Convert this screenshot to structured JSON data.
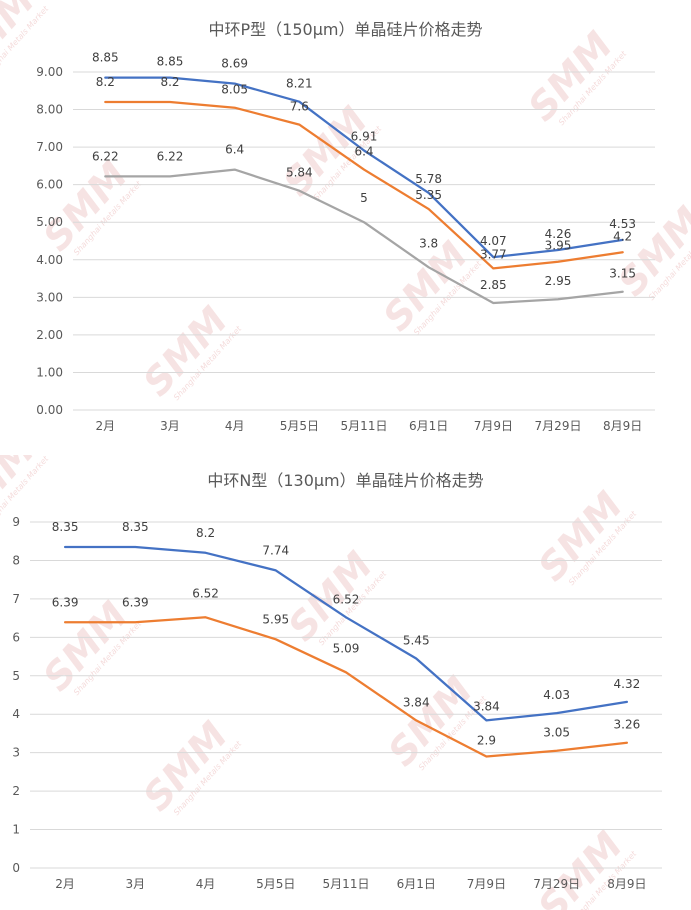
{
  "watermark": {
    "logo": "SMM",
    "tagline": "Shanghai Metals Market"
  },
  "colors": {
    "series1": "#4472c4",
    "series2": "#ed7d31",
    "series3": "#a5a5a5",
    "grid": "#d9d9d9"
  },
  "chart_data": [
    {
      "type": "line",
      "title": "中环P型（150μm）单晶硅片价格走势",
      "categories": [
        "2月",
        "3月",
        "4月",
        "5月5日",
        "5月11日",
        "6月1日",
        "7月9日",
        "7月29日",
        "8月9日"
      ],
      "ylim": [
        0,
        9
      ],
      "yticks": [
        0,
        1,
        2,
        3,
        4,
        5,
        6,
        7,
        8,
        9
      ],
      "ytick_labels": [
        "0.00",
        "1.00",
        "2.00",
        "3.00",
        "4.00",
        "5.00",
        "6.00",
        "7.00",
        "8.00",
        "9.00"
      ],
      "grid": true,
      "legend": "none",
      "series": [
        {
          "values": [
            8.85,
            8.85,
            8.69,
            8.21,
            6.91,
            5.78,
            4.07,
            4.26,
            4.53
          ],
          "labels": [
            "8.85",
            "8.85",
            "8.69",
            "8.21",
            "6.91",
            "5.78",
            "4.07",
            "4.26",
            "4.53"
          ]
        },
        {
          "values": [
            8.2,
            8.2,
            8.05,
            7.6,
            6.4,
            5.35,
            3.77,
            3.95,
            4.2
          ],
          "labels": [
            "8.2",
            "8.2",
            "8.05",
            "7.6",
            "6.4",
            "5.35",
            "3.77",
            "3.95",
            "4.2"
          ]
        },
        {
          "values": [
            6.22,
            6.22,
            6.4,
            5.84,
            5,
            3.8,
            2.85,
            2.95,
            3.15
          ],
          "labels": [
            "6.22",
            "6.22",
            "6.4",
            "5.84",
            "5",
            "3.8",
            "2.85",
            "2.95",
            "3.15"
          ]
        }
      ]
    },
    {
      "type": "line",
      "title": "中环N型（130μm）单晶硅片价格走势",
      "categories": [
        "2月",
        "3月",
        "4月",
        "5月5日",
        "5月11日",
        "6月1日",
        "7月9日",
        "7月29日",
        "8月9日"
      ],
      "ylim": [
        0,
        9
      ],
      "yticks": [
        0,
        1,
        2,
        3,
        4,
        5,
        6,
        7,
        8,
        9
      ],
      "ytick_labels": [
        "0",
        "1",
        "2",
        "3",
        "4",
        "5",
        "6",
        "7",
        "8",
        "9"
      ],
      "grid": true,
      "legend": "none",
      "series": [
        {
          "values": [
            8.35,
            8.35,
            8.2,
            7.74,
            6.52,
            5.45,
            3.84,
            4.03,
            4.32
          ],
          "labels": [
            "8.35",
            "8.35",
            "8.2",
            "7.74",
            "6.52",
            "5.45",
            "3.84",
            "4.03",
            "4.32"
          ]
        },
        {
          "values": [
            6.39,
            6.39,
            6.52,
            5.95,
            5.09,
            3.84,
            2.9,
            3.05,
            3.26
          ],
          "labels": [
            "6.39",
            "6.39",
            "6.52",
            "5.95",
            "5.09",
            "3.84",
            "2.9",
            "3.05",
            "3.26"
          ]
        }
      ]
    }
  ]
}
